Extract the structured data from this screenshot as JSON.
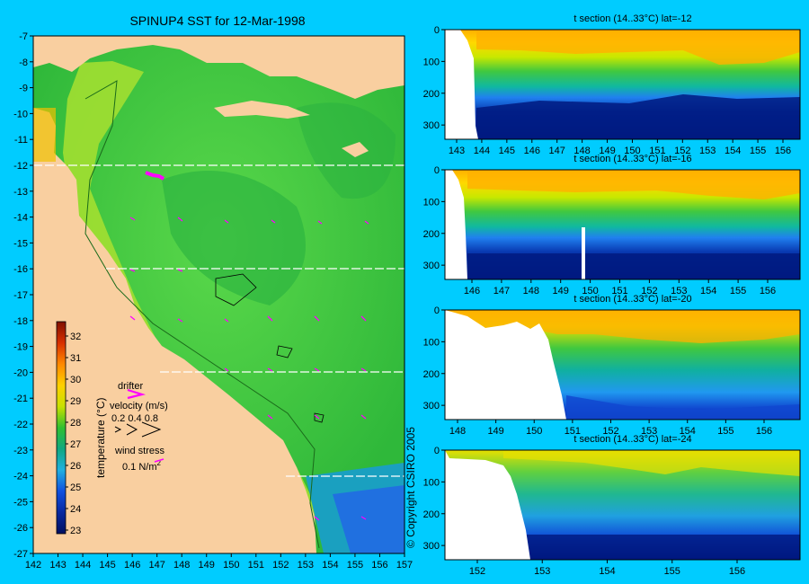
{
  "colors": {
    "background": "#00ccff",
    "land": "#f9cfa0",
    "sea": "#35c238",
    "drifter": "#ff00ff",
    "section_line": "#ffffff"
  },
  "map": {
    "title": "SPINUP4 SST for 12-Mar-1998",
    "lon_ticks": [
      "142",
      "143",
      "144",
      "145",
      "146",
      "147",
      "148",
      "149",
      "150",
      "151",
      "152",
      "153",
      "154",
      "155",
      "156",
      "157"
    ],
    "lat_ticks": [
      "-7",
      "-8",
      "-9",
      "-10",
      "-11",
      "-12",
      "-13",
      "-14",
      "-15",
      "-16",
      "-17",
      "-18",
      "-19",
      "-20",
      "-21",
      "-22",
      "-23",
      "-24",
      "-25",
      "-26",
      "-27"
    ],
    "section_lats": [
      -12,
      -16,
      -20,
      -24
    ]
  },
  "colorbar": {
    "label": "temperature (°C)",
    "ticks": [
      "32",
      "31",
      "30",
      "29",
      "28",
      "27",
      "26",
      "25",
      "24",
      "23"
    ]
  },
  "legend": {
    "drifter": "drifter",
    "velocity_label": "velocity (m/s)",
    "velocity_values": "0.2 0.4 0.8",
    "wind_label": "wind stress",
    "wind_value": "0.1 N/m",
    "wind_exp": "2"
  },
  "copyright": "© Copyright CSIRO 2005",
  "sections": [
    {
      "title": "t section (14..33°C) lat=-12",
      "depth_ticks": [
        "0",
        "100",
        "200",
        "300"
      ],
      "lon_ticks": [
        "143",
        "144",
        "145",
        "146",
        "147",
        "148",
        "149",
        "150",
        "151",
        "152",
        "153",
        "154",
        "155",
        "156"
      ]
    },
    {
      "title": "t section (14..33°C) lat=-16",
      "depth_ticks": [
        "0",
        "100",
        "200",
        "300"
      ],
      "lon_ticks": [
        "146",
        "147",
        "148",
        "149",
        "150",
        "151",
        "152",
        "153",
        "154",
        "155",
        "156"
      ]
    },
    {
      "title": "t section (14..33°C) lat=-20",
      "depth_ticks": [
        "0",
        "100",
        "200",
        "300"
      ],
      "lon_ticks": [
        "148",
        "149",
        "150",
        "151",
        "152",
        "153",
        "154",
        "155",
        "156"
      ]
    },
    {
      "title": "t section (14..33°C) lat=-24",
      "depth_ticks": [
        "0",
        "100",
        "200",
        "300"
      ],
      "lon_ticks": [
        "152",
        "153",
        "154",
        "155",
        "156"
      ]
    }
  ]
}
